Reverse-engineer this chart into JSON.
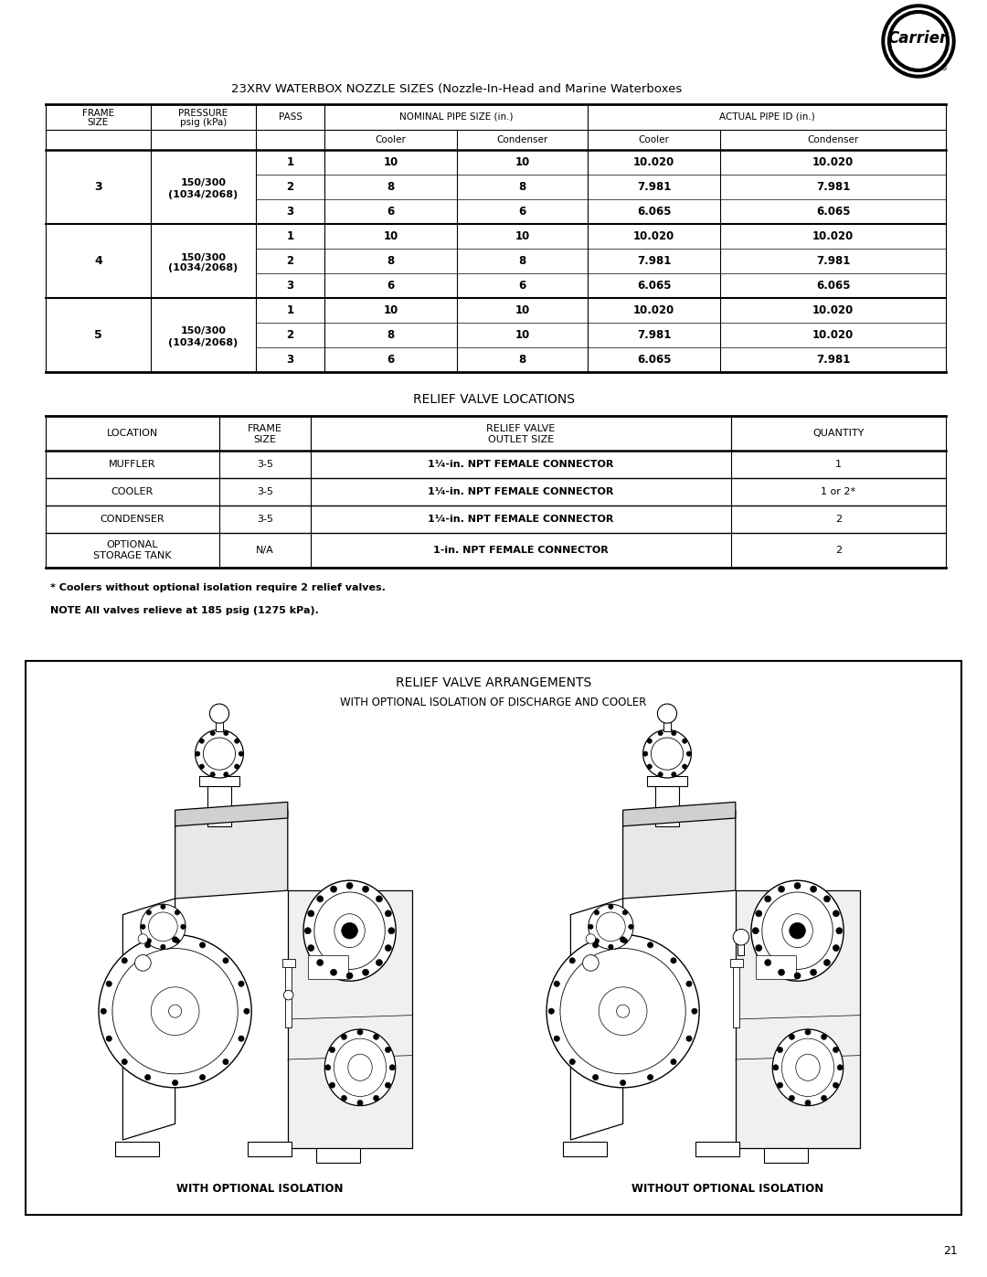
{
  "page_title": "23XRV WATERBOX NOZZLE SIZES (Nozzle-In-Head and Marine Waterboxes",
  "table1_data": [
    [
      "3",
      "150/300\n(1034/2068)",
      "1",
      "10",
      "10",
      "10.020",
      "10.020"
    ],
    [
      "3",
      "150/300\n(1034/2068)",
      "2",
      "8",
      "8",
      "7.981",
      "7.981"
    ],
    [
      "3",
      "150/300\n(1034/2068)",
      "3",
      "6",
      "6",
      "6.065",
      "6.065"
    ],
    [
      "4",
      "150/300\n(1034/2068)",
      "1",
      "10",
      "10",
      "10.020",
      "10.020"
    ],
    [
      "4",
      "150/300\n(1034/2068)",
      "2",
      "8",
      "8",
      "7.981",
      "7.981"
    ],
    [
      "4",
      "150/300\n(1034/2068)",
      "3",
      "6",
      "6",
      "6.065",
      "6.065"
    ],
    [
      "5",
      "150/300\n(1034/2068)",
      "1",
      "10",
      "10",
      "10.020",
      "10.020"
    ],
    [
      "5",
      "150/300\n(1034/2068)",
      "2",
      "8",
      "10",
      "7.981",
      "10.020"
    ],
    [
      "5",
      "150/300\n(1034/2068)",
      "3",
      "6",
      "8",
      "6.065",
      "7.981"
    ]
  ],
  "table2_title": "RELIEF VALVE LOCATIONS",
  "table2_data": [
    [
      "MUFFLER",
      "3-5",
      "1¹⁄₄-in. NPT FEMALE CONNECTOR",
      "1"
    ],
    [
      "COOLER",
      "3-5",
      "1¹⁄₄-in. NPT FEMALE CONNECTOR",
      "1 or 2*"
    ],
    [
      "CONDENSER",
      "3-5",
      "1¹⁄₄-in. NPT FEMALE CONNECTOR",
      "2"
    ],
    [
      "OPTIONAL\nSTORAGE TANK",
      "N/A",
      "1-in. NPT FEMALE CONNECTOR",
      "2"
    ]
  ],
  "footnote1": "* Coolers without optional isolation require 2 relief valves.",
  "footnote2": "NOTE All valves relieve at 185 psig (1275 kPa).",
  "diagram_title": "RELIEF VALVE ARRANGEMENTS",
  "diagram_subtitle": "WITH OPTIONAL ISOLATION OF DISCHARGE AND COOLER",
  "diagram_label_left": "WITH OPTIONAL ISOLATION",
  "diagram_label_right": "WITHOUT OPTIONAL ISOLATION",
  "page_number": "21",
  "bg_color": "#ffffff"
}
